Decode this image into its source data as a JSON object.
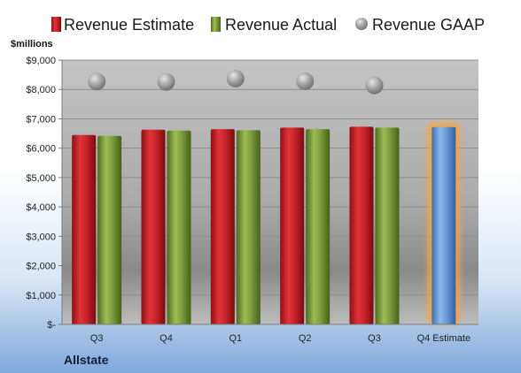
{
  "company": "Allstate",
  "chart_data": {
    "type": "bar",
    "ylabel": "$millions",
    "ylim": [
      0,
      9000
    ],
    "yticks": [
      {
        "value": 0,
        "label": "$-"
      },
      {
        "value": 1000,
        "label": "$1,000"
      },
      {
        "value": 2000,
        "label": "$2,000"
      },
      {
        "value": 3000,
        "label": "$3,000"
      },
      {
        "value": 4000,
        "label": "$4,000"
      },
      {
        "value": 5000,
        "label": "$5,000"
      },
      {
        "value": 6000,
        "label": "$6,000"
      },
      {
        "value": 7000,
        "label": "$7,000"
      },
      {
        "value": 8000,
        "label": "$8,000"
      },
      {
        "value": 9000,
        "label": "$9,000"
      }
    ],
    "categories": [
      "Q3",
      "Q4",
      "Q1",
      "Q2",
      "Q3",
      "Q4 Estimate"
    ],
    "legend_placement": "top",
    "series": [
      {
        "name": "Revenue Estimate",
        "kind": "bar",
        "color": "#c0272d",
        "values": [
          6450,
          6630,
          6650,
          6700,
          6730,
          null
        ]
      },
      {
        "name": "Revenue Actual",
        "kind": "bar",
        "color": "#7a9a3a",
        "values": [
          6420,
          6600,
          6610,
          6650,
          6700,
          null
        ]
      },
      {
        "name": "Revenue GAAP",
        "kind": "marker",
        "color": "#9a9a9a",
        "values": [
          8270,
          8260,
          8370,
          8280,
          8140,
          null
        ]
      }
    ],
    "estimate": {
      "category_index": 5,
      "value": 6720,
      "color": "#6a9bd8",
      "glow": "#f5a640"
    }
  }
}
